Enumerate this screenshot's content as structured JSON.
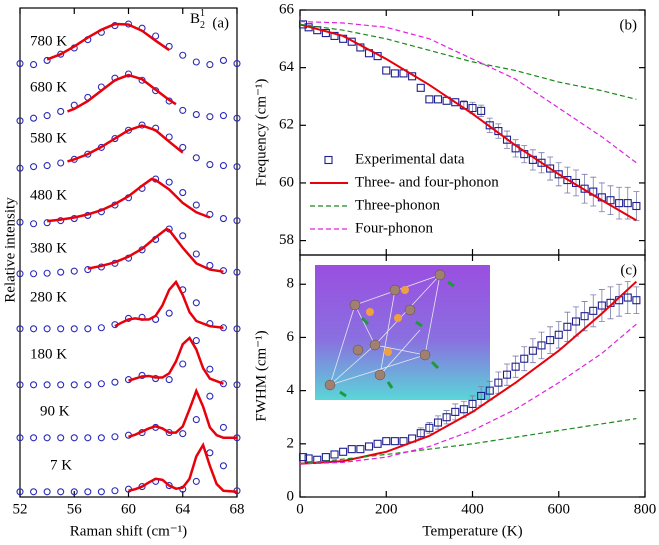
{
  "chart_data": [
    {
      "type": "spectra",
      "panel_label": "(a)",
      "mode_label": {
        "base": "B",
        "sub": "2",
        "sup": "1"
      },
      "xlabel": "Raman shift (cm⁻¹)",
      "ylabel": "Relative intensity",
      "xlim": [
        52,
        68
      ],
      "xticks": [
        52,
        56,
        60,
        64,
        68
      ],
      "marker_color": "#2b2bb8",
      "fit_color": "#e8000b",
      "x": [
        52,
        53,
        54,
        55,
        56,
        57,
        58,
        59,
        60,
        61,
        62,
        63,
        64,
        65,
        66,
        67,
        68
      ],
      "spectra": [
        {
          "label": "780 K",
          "values": [
            0.22,
            0.2,
            0.28,
            0.4,
            0.52,
            0.68,
            0.82,
            0.95,
            0.98,
            0.9,
            0.75,
            0.55,
            0.38,
            0.25,
            0.2,
            0.28,
            0.22
          ],
          "fit_x": [
            54,
            55,
            56,
            57,
            58,
            59,
            60,
            61,
            62,
            63
          ],
          "fit_values": [
            0.3,
            0.4,
            0.55,
            0.72,
            0.87,
            0.98,
            0.97,
            0.85,
            0.66,
            0.48
          ]
        },
        {
          "label": "680 K",
          "values": [
            0.1,
            0.15,
            0.2,
            0.28,
            0.4,
            0.55,
            0.75,
            0.92,
            1.0,
            0.88,
            0.68,
            0.48,
            0.3,
            0.22,
            0.18,
            0.2,
            0.15
          ],
          "fit_x": [
            55.5,
            56,
            57,
            58,
            59,
            60,
            61,
            62,
            63,
            63.5
          ],
          "fit_values": [
            0.28,
            0.33,
            0.48,
            0.68,
            0.88,
            0.98,
            0.9,
            0.7,
            0.5,
            0.42
          ]
        },
        {
          "label": "580 K",
          "values": [
            0.15,
            0.18,
            0.2,
            0.25,
            0.32,
            0.42,
            0.55,
            0.72,
            0.88,
            0.98,
            0.92,
            0.75,
            0.55,
            0.35,
            0.22,
            0.2,
            0.18
          ],
          "fit_x": [
            55.5,
            56,
            57,
            58,
            59,
            60,
            61,
            62,
            63,
            64
          ],
          "fit_values": [
            0.28,
            0.32,
            0.42,
            0.56,
            0.72,
            0.88,
            0.97,
            0.88,
            0.66,
            0.45
          ]
        },
        {
          "label": "480 K",
          "values": [
            0.15,
            0.12,
            0.14,
            0.18,
            0.22,
            0.28,
            0.35,
            0.48,
            0.62,
            0.8,
            0.98,
            0.92,
            0.72,
            0.48,
            0.3,
            0.22,
            0.18
          ],
          "fit_x": [
            54,
            55,
            56,
            57,
            58,
            59,
            60,
            61,
            61.7,
            62,
            63,
            64,
            65,
            66
          ],
          "fit_values": [
            0.17,
            0.2,
            0.24,
            0.3,
            0.38,
            0.5,
            0.65,
            0.85,
            0.98,
            0.96,
            0.78,
            0.52,
            0.34,
            0.24
          ]
        },
        {
          "label": "380 K",
          "values": [
            0.12,
            0.12,
            0.13,
            0.15,
            0.17,
            0.2,
            0.25,
            0.32,
            0.42,
            0.58,
            0.78,
            0.98,
            0.85,
            0.5,
            0.28,
            0.18,
            0.15
          ],
          "fit_x": [
            57,
            58,
            59,
            60,
            61,
            62,
            62.8,
            63,
            64,
            65,
            66,
            67
          ],
          "fit_values": [
            0.22,
            0.27,
            0.34,
            0.45,
            0.6,
            0.82,
            0.98,
            0.96,
            0.62,
            0.32,
            0.2,
            0.16
          ]
        },
        {
          "label": "280 K",
          "values": [
            0.1,
            0.1,
            0.1,
            0.1,
            0.1,
            0.1,
            0.12,
            0.18,
            0.3,
            0.32,
            0.28,
            0.4,
            0.85,
            0.6,
            0.2,
            0.12,
            0.1
          ],
          "fit_x": [
            59,
            59.5,
            60,
            60.5,
            61,
            61.5,
            62,
            62.5,
            63,
            63.5,
            64,
            64.5,
            65,
            66,
            67
          ],
          "fit_values": [
            0.15,
            0.22,
            0.28,
            0.3,
            0.28,
            0.28,
            0.35,
            0.55,
            0.85,
            1.0,
            0.75,
            0.42,
            0.25,
            0.15,
            0.12
          ]
        },
        {
          "label": "180 K",
          "values": [
            0.1,
            0.1,
            0.1,
            0.1,
            0.1,
            0.1,
            0.12,
            0.15,
            0.2,
            0.28,
            0.22,
            0.2,
            0.5,
            0.95,
            0.4,
            0.12,
            0.1
          ],
          "fit_x": [
            60,
            60.5,
            61,
            61.5,
            62,
            62.5,
            63,
            63.5,
            64,
            64.5,
            65,
            65.5,
            66,
            67
          ],
          "fit_values": [
            0.18,
            0.22,
            0.26,
            0.27,
            0.24,
            0.24,
            0.32,
            0.55,
            0.88,
            1.0,
            0.78,
            0.42,
            0.22,
            0.12
          ]
        },
        {
          "label": "90 K",
          "values": [
            0.1,
            0.1,
            0.1,
            0.1,
            0.1,
            0.1,
            0.1,
            0.12,
            0.15,
            0.2,
            0.3,
            0.2,
            0.18,
            0.45,
            0.9,
            0.3,
            0.1
          ],
          "fit_x": [
            60,
            60.5,
            61,
            61.5,
            62,
            62.5,
            63,
            63.5,
            64,
            64.5,
            65,
            65.5,
            66,
            66.5,
            67,
            68
          ],
          "fit_values": [
            0.12,
            0.16,
            0.22,
            0.28,
            0.32,
            0.28,
            0.2,
            0.2,
            0.32,
            0.65,
            1.0,
            0.7,
            0.3,
            0.15,
            0.1,
            0.1
          ]
        },
        {
          "label": "7 K",
          "values": [
            0.1,
            0.1,
            0.1,
            0.1,
            0.1,
            0.1,
            0.1,
            0.12,
            0.15,
            0.2,
            0.3,
            0.22,
            0.15,
            0.3,
            0.85,
            0.6,
            0.12
          ],
          "fit_x": [
            60,
            60.5,
            61,
            61.5,
            62,
            62.5,
            63,
            63.5,
            64,
            64.5,
            65,
            65.5,
            66,
            66.5,
            67,
            68
          ],
          "fit_values": [
            0.12,
            0.15,
            0.2,
            0.28,
            0.35,
            0.33,
            0.22,
            0.16,
            0.18,
            0.35,
            0.78,
            1.0,
            0.6,
            0.25,
            0.12,
            0.1
          ]
        }
      ]
    },
    {
      "type": "scatter",
      "panel_label": "(b)",
      "ylabel": "Frequency (cm⁻¹)",
      "xlim": [
        0,
        800
      ],
      "ylim": [
        57.5,
        66
      ],
      "yticks": [
        58,
        60,
        62,
        64,
        66
      ],
      "legend": "center-left",
      "series": [
        {
          "name": "Experimental data",
          "kind": "markers",
          "color": "#1f1f8f",
          "x": [
            7,
            20,
            40,
            60,
            80,
            100,
            120,
            140,
            160,
            180,
            200,
            220,
            240,
            260,
            280,
            300,
            320,
            340,
            360,
            380,
            400,
            420,
            440,
            460,
            480,
            500,
            520,
            540,
            560,
            580,
            600,
            620,
            640,
            660,
            680,
            700,
            720,
            740,
            760,
            780
          ],
          "values": [
            65.5,
            65.4,
            65.3,
            65.2,
            65.1,
            65.0,
            64.9,
            64.7,
            64.5,
            64.4,
            63.9,
            63.8,
            63.8,
            63.7,
            63.3,
            62.9,
            62.9,
            62.85,
            62.8,
            62.7,
            62.6,
            62.5,
            62.0,
            61.8,
            61.5,
            61.2,
            61.0,
            60.8,
            60.7,
            60.5,
            60.3,
            60.1,
            60.0,
            59.8,
            59.7,
            59.5,
            59.4,
            59.3,
            59.3,
            59.2
          ],
          "errors": [
            null,
            null,
            null,
            null,
            null,
            null,
            null,
            null,
            null,
            null,
            null,
            null,
            null,
            null,
            null,
            null,
            null,
            null,
            null,
            0.15,
            0.2,
            0.2,
            0.25,
            0.25,
            0.3,
            0.3,
            0.3,
            0.35,
            0.35,
            0.4,
            0.4,
            0.45,
            0.45,
            0.5,
            0.5,
            0.5,
            0.5,
            0.55,
            0.55,
            0.5
          ]
        },
        {
          "name": "Three- and four-phonon",
          "kind": "solid",
          "color": "#e8000b",
          "x": [
            0,
            100,
            200,
            300,
            400,
            500,
            600,
            700,
            780
          ],
          "values": [
            65.5,
            65.1,
            64.3,
            63.4,
            62.4,
            61.3,
            60.3,
            59.4,
            58.7
          ]
        },
        {
          "name": "Three-phonon",
          "kind": "dashed",
          "color": "#1a8a1a",
          "x": [
            0,
            100,
            200,
            300,
            400,
            500,
            600,
            700,
            780
          ],
          "values": [
            65.5,
            65.3,
            65.0,
            64.6,
            64.2,
            63.9,
            63.5,
            63.2,
            62.9
          ]
        },
        {
          "name": "Four-phonon",
          "kind": "dashed",
          "color": "#e020e0",
          "x": [
            0,
            100,
            200,
            300,
            400,
            500,
            600,
            700,
            780
          ],
          "values": [
            65.6,
            65.55,
            65.4,
            65.0,
            64.3,
            63.6,
            62.6,
            61.6,
            60.7
          ]
        }
      ]
    },
    {
      "type": "scatter",
      "panel_label": "(c)",
      "ylabel": "FWHM (cm⁻¹)",
      "xlabel": "Temperature (K)",
      "xlim": [
        0,
        800
      ],
      "xticks": [
        0,
        200,
        400,
        600,
        800
      ],
      "ylim": [
        0,
        9.1
      ],
      "yticks": [
        0,
        2,
        4,
        6,
        8
      ],
      "series": [
        {
          "kind": "markers",
          "color": "#1f1f8f",
          "x": [
            7,
            20,
            40,
            60,
            80,
            100,
            120,
            140,
            160,
            180,
            200,
            220,
            240,
            260,
            280,
            300,
            320,
            340,
            360,
            380,
            400,
            420,
            440,
            460,
            480,
            500,
            520,
            540,
            560,
            580,
            600,
            620,
            640,
            660,
            680,
            700,
            720,
            740,
            760,
            780
          ],
          "values": [
            1.5,
            1.45,
            1.4,
            1.5,
            1.6,
            1.7,
            1.8,
            1.8,
            1.9,
            2.0,
            2.1,
            2.1,
            2.1,
            2.2,
            2.4,
            2.6,
            2.8,
            3.0,
            3.2,
            3.3,
            3.5,
            3.8,
            4.0,
            4.3,
            4.6,
            4.9,
            5.2,
            5.5,
            5.7,
            5.9,
            6.1,
            6.4,
            6.6,
            6.8,
            7.0,
            7.2,
            7.3,
            7.4,
            7.5,
            7.4
          ],
          "errors": [
            null,
            null,
            null,
            null,
            null,
            null,
            null,
            null,
            null,
            null,
            null,
            null,
            null,
            null,
            0.2,
            0.2,
            0.25,
            0.25,
            0.3,
            0.3,
            0.3,
            0.35,
            0.35,
            0.4,
            0.4,
            0.4,
            0.45,
            0.45,
            0.5,
            0.5,
            0.5,
            0.55,
            0.55,
            0.55,
            0.6,
            0.6,
            0.6,
            0.6,
            0.6,
            0.5
          ]
        },
        {
          "kind": "solid",
          "color": "#e8000b",
          "x": [
            0,
            100,
            200,
            300,
            400,
            500,
            600,
            700,
            780
          ],
          "values": [
            1.25,
            1.35,
            1.7,
            2.3,
            3.2,
            4.3,
            5.5,
            6.9,
            8.1
          ]
        },
        {
          "kind": "dashed",
          "color": "#1a8a1a",
          "x": [
            0,
            200,
            400,
            600,
            780
          ],
          "values": [
            1.25,
            1.6,
            2.0,
            2.5,
            2.95
          ]
        },
        {
          "kind": "dashed",
          "color": "#e020e0",
          "x": [
            0,
            100,
            200,
            300,
            400,
            500,
            600,
            700,
            780
          ],
          "values": [
            1.25,
            1.3,
            1.5,
            1.9,
            2.5,
            3.3,
            4.3,
            5.4,
            6.5
          ]
        }
      ]
    }
  ]
}
